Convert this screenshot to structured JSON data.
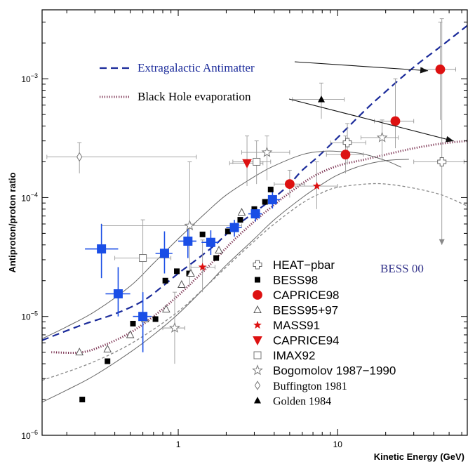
{
  "chart_data": {
    "type": "scatter",
    "title": "",
    "xlabel": "Kinetic Energy (GeV)",
    "ylabel": "Antiproton/proton ratio",
    "x_scale": "log",
    "y_scale": "log",
    "xlim": [
      0.14,
      65
    ],
    "ylim": [
      1e-06,
      0.0038
    ],
    "x_ticks": [
      {
        "value": 1,
        "label": "1"
      },
      {
        "value": 10,
        "label": "10"
      }
    ],
    "y_ticks": [
      {
        "value": 1e-06,
        "base": "10",
        "exp": "−6"
      },
      {
        "value": 1e-05,
        "base": "10",
        "exp": "−5"
      },
      {
        "value": 0.0001,
        "base": "10",
        "exp": "−4"
      },
      {
        "value": 0.001,
        "base": "10",
        "exp": "−3"
      }
    ],
    "annotations": [
      {
        "text": "BESS 00",
        "color": "#33338a"
      }
    ],
    "curves": [
      {
        "name": "Extragalactic Antimatter",
        "style": "dashed",
        "color": "#1a2a9a",
        "points": [
          [
            0.14,
            6.3e-06
          ],
          [
            0.25,
            8.5e-06
          ],
          [
            0.4,
            1.05e-05
          ],
          [
            0.6,
            1.35e-05
          ],
          [
            0.8,
            1.8e-05
          ],
          [
            1,
            2.3e-05
          ],
          [
            1.3,
            3e-05
          ],
          [
            1.7,
            4e-05
          ],
          [
            2.2,
            5.5e-05
          ],
          [
            3,
            7.5e-05
          ],
          [
            4,
            0.0001
          ],
          [
            5,
            0.00013
          ],
          [
            6,
            0.00017
          ],
          [
            7.5,
            0.00022
          ],
          [
            10,
            0.00032
          ],
          [
            15,
            0.00055
          ],
          [
            20,
            0.00078
          ],
          [
            30,
            0.00125
          ],
          [
            45,
            0.0019
          ],
          [
            65,
            0.0028
          ]
        ]
      },
      {
        "name": "Black Hole evaporation",
        "style": "dotted",
        "color": "#7a3050",
        "points": [
          [
            0.16,
            5e-06
          ],
          [
            0.25,
            5e-06
          ],
          [
            0.35,
            5.8e-06
          ],
          [
            0.5,
            7.3e-06
          ],
          [
            0.7,
            1e-05
          ],
          [
            1,
            1.5e-05
          ],
          [
            1.3,
            2.1e-05
          ],
          [
            1.7,
            3e-05
          ],
          [
            2.2,
            4.3e-05
          ],
          [
            3,
            6.3e-05
          ],
          [
            4,
            8.7e-05
          ],
          [
            5,
            0.00011
          ],
          [
            7,
            0.00015
          ],
          [
            10,
            0.000185
          ],
          [
            15,
            0.00021
          ],
          [
            20,
            0.00023
          ],
          [
            30,
            0.00026
          ],
          [
            45,
            0.000285
          ],
          [
            65,
            0.0003
          ]
        ]
      },
      {
        "name": "",
        "style": "solid",
        "color": "#666666",
        "points": [
          [
            0.14,
            6.5e-06
          ],
          [
            0.2,
            8.2e-06
          ],
          [
            0.3,
            1.1e-05
          ],
          [
            0.5,
            1.8e-05
          ],
          [
            0.7,
            2.8e-05
          ],
          [
            1,
            4.5e-05
          ],
          [
            1.5,
            7.5e-05
          ],
          [
            2,
            0.000105
          ],
          [
            3,
            0.00015
          ],
          [
            4,
            0.000185
          ],
          [
            6,
            0.00023
          ],
          [
            8,
            0.000245
          ],
          [
            10,
            0.000245
          ],
          [
            14,
            0.000235
          ],
          [
            20,
            0.000205
          ],
          [
            25,
            0.00018
          ]
        ]
      },
      {
        "name": "",
        "style": "solid",
        "color": "#666666",
        "points": [
          [
            0.14,
            1.9e-06
          ],
          [
            0.2,
            2.4e-06
          ],
          [
            0.3,
            3.2e-06
          ],
          [
            0.5,
            5e-06
          ],
          [
            0.7,
            7e-06
          ],
          [
            1,
            1.05e-05
          ],
          [
            1.5,
            1.8e-05
          ],
          [
            2,
            2.7e-05
          ],
          [
            3,
            4.5e-05
          ],
          [
            4,
            6.5e-05
          ],
          [
            6,
            0.0001
          ],
          [
            8,
            0.00013
          ],
          [
            10,
            0.000155
          ],
          [
            14,
            0.000185
          ],
          [
            20,
            0.000205
          ],
          [
            28,
            0.00021
          ]
        ]
      },
      {
        "name": "",
        "style": "dashed-fine",
        "color": "#888888",
        "points": [
          [
            0.14,
            2.9e-06
          ],
          [
            0.25,
            3.8e-06
          ],
          [
            0.4,
            5e-06
          ],
          [
            0.6,
            6.8e-06
          ],
          [
            1,
            1.1e-05
          ],
          [
            1.5,
            1.8e-05
          ],
          [
            2,
            2.6e-05
          ],
          [
            3,
            4.3e-05
          ],
          [
            4,
            6e-05
          ],
          [
            6,
            9e-05
          ],
          [
            8,
            0.00011
          ],
          [
            10,
            0.000122
          ],
          [
            15,
            0.00013
          ],
          [
            20,
            0.00013
          ],
          [
            30,
            0.00012
          ],
          [
            45,
            0.000105
          ],
          [
            65,
            8.5e-05
          ]
        ]
      }
    ],
    "series": [
      {
        "name": "HEAT−pbar",
        "marker": "open-cross",
        "color": "#666666",
        "points": [
          {
            "x": 11.5,
            "y": 0.00029,
            "xerr": [
              9,
              15
            ],
            "yerr": [
              0.00019,
              0.00042
            ]
          },
          {
            "x": 45,
            "y": 0.0002,
            "xerr": [
              30,
              62
            ],
            "yerr": [
              4e-05,
              0.0032
            ]
          }
        ]
      },
      {
        "name": "BESS98",
        "marker": "filled-square",
        "color": "#000000",
        "points": [
          {
            "x": 0.25,
            "y": 2e-06
          },
          {
            "x": 0.36,
            "y": 4.2e-06
          },
          {
            "x": 0.52,
            "y": 8.7e-06
          },
          {
            "x": 0.72,
            "y": 9.5e-06
          },
          {
            "x": 0.83,
            "y": 2e-05
          },
          {
            "x": 0.98,
            "y": 2.4e-05
          },
          {
            "x": 1.17,
            "y": 2.3e-05
          },
          {
            "x": 1.42,
            "y": 4.9e-05
          },
          {
            "x": 1.73,
            "y": 3.1e-05
          },
          {
            "x": 2.05,
            "y": 5.2e-05
          },
          {
            "x": 2.45,
            "y": 6.5e-05
          },
          {
            "x": 3.0,
            "y": 8e-05
          },
          {
            "x": 3.5,
            "y": 9.2e-05
          },
          {
            "x": 3.8,
            "y": 0.000117
          }
        ]
      },
      {
        "name": "CAPRICE98",
        "marker": "filled-circle",
        "color": "#dd1111",
        "points": [
          {
            "x": 5.0,
            "y": 0.00013,
            "xerr": [
              4,
              6.2
            ],
            "yerr": [
              0.0001,
              0.00017
            ]
          },
          {
            "x": 11.2,
            "y": 0.00023,
            "xerr": [
              8.5,
              14.5
            ],
            "yerr": [
              0.00016,
              0.00033
            ]
          },
          {
            "x": 23,
            "y": 0.00044,
            "xerr": [
              17,
              30
            ],
            "yerr": [
              0.00026,
              0.001
            ]
          },
          {
            "x": 44,
            "y": 0.0012,
            "xerr": [
              34,
              55
            ],
            "yerr": [
              0.00045,
              0.003
            ]
          }
        ]
      },
      {
        "name": "BESS95+97",
        "marker": "open-triangle",
        "color": "#555555",
        "points": [
          {
            "x": 0.24,
            "y": 5e-06
          },
          {
            "x": 0.36,
            "y": 5.3e-06
          },
          {
            "x": 0.5,
            "y": 7e-06
          },
          {
            "x": 0.62,
            "y": 9.5e-06
          },
          {
            "x": 0.84,
            "y": 1.15e-05
          },
          {
            "x": 1.05,
            "y": 1.85e-05
          },
          {
            "x": 1.2,
            "y": 2.3e-05
          },
          {
            "x": 1.8,
            "y": 3.6e-05
          },
          {
            "x": 2.5,
            "y": 7.5e-05
          }
        ]
      },
      {
        "name": "MASS91",
        "marker": "filled-star",
        "color": "#dd1111",
        "points": [
          {
            "x": 1.42,
            "y": 2.6e-05,
            "xerr": [
              1.2,
              1.7
            ],
            "yerr": [
              1.6e-05,
              4.4e-05
            ]
          },
          {
            "x": 7.4,
            "y": 0.000125,
            "xerr": [
              5,
              10
            ],
            "yerr": [
              8e-05,
              0.0002
            ]
          }
        ]
      },
      {
        "name": "CAPRICE94",
        "marker": "filled-triangle-down",
        "color": "#dd1111",
        "points": [
          {
            "x": 2.7,
            "y": 0.000195,
            "xerr": [
              2.1,
              3.4
            ],
            "yerr": [
              0.000125,
              0.00033
            ]
          }
        ]
      },
      {
        "name": "IMAX92",
        "marker": "open-square",
        "color": "#777777",
        "points": [
          {
            "x": 0.6,
            "y": 3.1e-05,
            "xerr": [
              0.4,
              0.9
            ],
            "yerr": [
              1.5e-05,
              6.5e-05
            ]
          },
          {
            "x": 3.1,
            "y": 0.0002,
            "xerr": [
              2.2,
              3.8
            ],
            "yerr": [
              0.00013,
              0.0003
            ]
          }
        ]
      },
      {
        "name": "Bogomolov 1987−1990",
        "marker": "open-star",
        "color": "#777777",
        "points": [
          {
            "x": 0.95,
            "y": 8e-06,
            "xerr": [
              0.8,
              1.1
            ],
            "yerr": [
              4e-06,
              1.6e-05
            ]
          },
          {
            "x": 1.18,
            "y": 5.8e-05,
            "xerr": [
              0.33,
              2.5
            ],
            "yerr": [
              1.8e-05,
              0.0002
            ]
          },
          {
            "x": 3.6,
            "y": 0.00024,
            "xerr": [
              2.5,
              5
            ],
            "yerr": [
              0.00014,
              0.00033
            ]
          },
          {
            "x": 19,
            "y": 0.00032,
            "xerr": [
              14,
              24
            ],
            "yerr": [
              0.0002,
              0.00045
            ]
          }
        ]
      },
      {
        "name": "Buffington 1981",
        "marker": "open-diamond",
        "color": "#777777",
        "points": [
          {
            "x": 0.24,
            "y": 0.00022,
            "xerr": [
              0.15,
              1.3
            ],
            "yerr": [
              0.00016,
              0.00029
            ]
          }
        ]
      },
      {
        "name": "Golden 1984",
        "marker": "filled-triangle",
        "color": "#000000",
        "points": [
          {
            "x": 7.9,
            "y": 0.00067,
            "xerr": [
              5.2,
              11
            ],
            "yerr": [
              0.00046,
              0.00092
            ]
          }
        ]
      },
      {
        "name": "BESS 00",
        "marker": "filled-square",
        "color": "#1a4ee6",
        "points": [
          {
            "x": 0.33,
            "y": 3.7e-05,
            "xerr": [
              0.26,
              0.42
            ],
            "yerr": [
              2.1e-05,
              6e-05
            ]
          },
          {
            "x": 0.42,
            "y": 1.55e-05,
            "xerr": [
              0.35,
              0.5
            ],
            "yerr": [
              1e-05,
              2.6e-05
            ]
          },
          {
            "x": 0.6,
            "y": 1e-05,
            "xerr": [
              0.52,
              0.68
            ],
            "yerr": [
              5e-06,
              1.6e-05
            ]
          },
          {
            "x": 0.82,
            "y": 3.4e-05,
            "xerr": [
              0.72,
              0.92
            ],
            "yerr": [
              2.3e-05,
              5.2e-05
            ]
          },
          {
            "x": 1.15,
            "y": 4.3e-05,
            "xerr": [
              1.0,
              1.3
            ],
            "yerr": [
              3.1e-05,
              6e-05
            ]
          },
          {
            "x": 1.6,
            "y": 4.2e-05,
            "xerr": [
              1.4,
              1.8
            ],
            "yerr": [
              3.3e-05,
              5.3e-05
            ]
          },
          {
            "x": 2.25,
            "y": 5.6e-05,
            "xerr": [
              2.0,
              2.5
            ],
            "yerr": [
              4.7e-05,
              6.5e-05
            ]
          },
          {
            "x": 3.05,
            "y": 7.3e-05,
            "xerr": [
              2.75,
              3.35
            ],
            "yerr": [
              6.3e-05,
              8.4e-05
            ]
          },
          {
            "x": 3.9,
            "y": 9.6e-05,
            "xerr": [
              3.45,
              4.35
            ],
            "yerr": [
              8.1e-05,
              0.000113
            ]
          }
        ]
      }
    ],
    "legend": {
      "placement": "bottom-right",
      "entries": [
        {
          "label": "HEAT−pbar",
          "marker": "open-cross",
          "color": "#666666",
          "font": "sans"
        },
        {
          "label": "BESS98",
          "marker": "filled-square",
          "color": "#000000",
          "font": "sans"
        },
        {
          "label": "CAPRICE98",
          "marker": "filled-circle",
          "color": "#dd1111",
          "font": "sans"
        },
        {
          "label": "BESS95+97",
          "marker": "open-triangle",
          "color": "#555555",
          "font": "sans"
        },
        {
          "label": "MASS91",
          "marker": "filled-star",
          "color": "#dd1111",
          "font": "sans"
        },
        {
          "label": "CAPRICE94",
          "marker": "filled-triangle-down",
          "color": "#dd1111",
          "font": "sans"
        },
        {
          "label": "IMAX92",
          "marker": "open-square",
          "color": "#777777",
          "font": "sans"
        },
        {
          "label": "Bogomolov 1987−1990",
          "marker": "open-star",
          "color": "#777777",
          "font": "sans"
        },
        {
          "label": "Buffington 1981",
          "marker": "open-diamond",
          "color": "#777777",
          "font": "serif"
        },
        {
          "label": "Golden 1984",
          "marker": "filled-triangle",
          "color": "#000000",
          "font": "serif"
        }
      ]
    },
    "curve_legend": {
      "placement": "top-left",
      "entries": [
        {
          "label": "Extragalactic Antimatter",
          "style": "dashed",
          "color": "#1a2a9a",
          "text_color": "#1a2a9a",
          "points_to": [
            40,
            0.0012
          ]
        },
        {
          "label": "Black Hole evaporation",
          "style": "dotted",
          "color": "#7a3050",
          "text_color": "#000000",
          "points_to": [
            58,
            0.000295
          ]
        }
      ]
    }
  }
}
